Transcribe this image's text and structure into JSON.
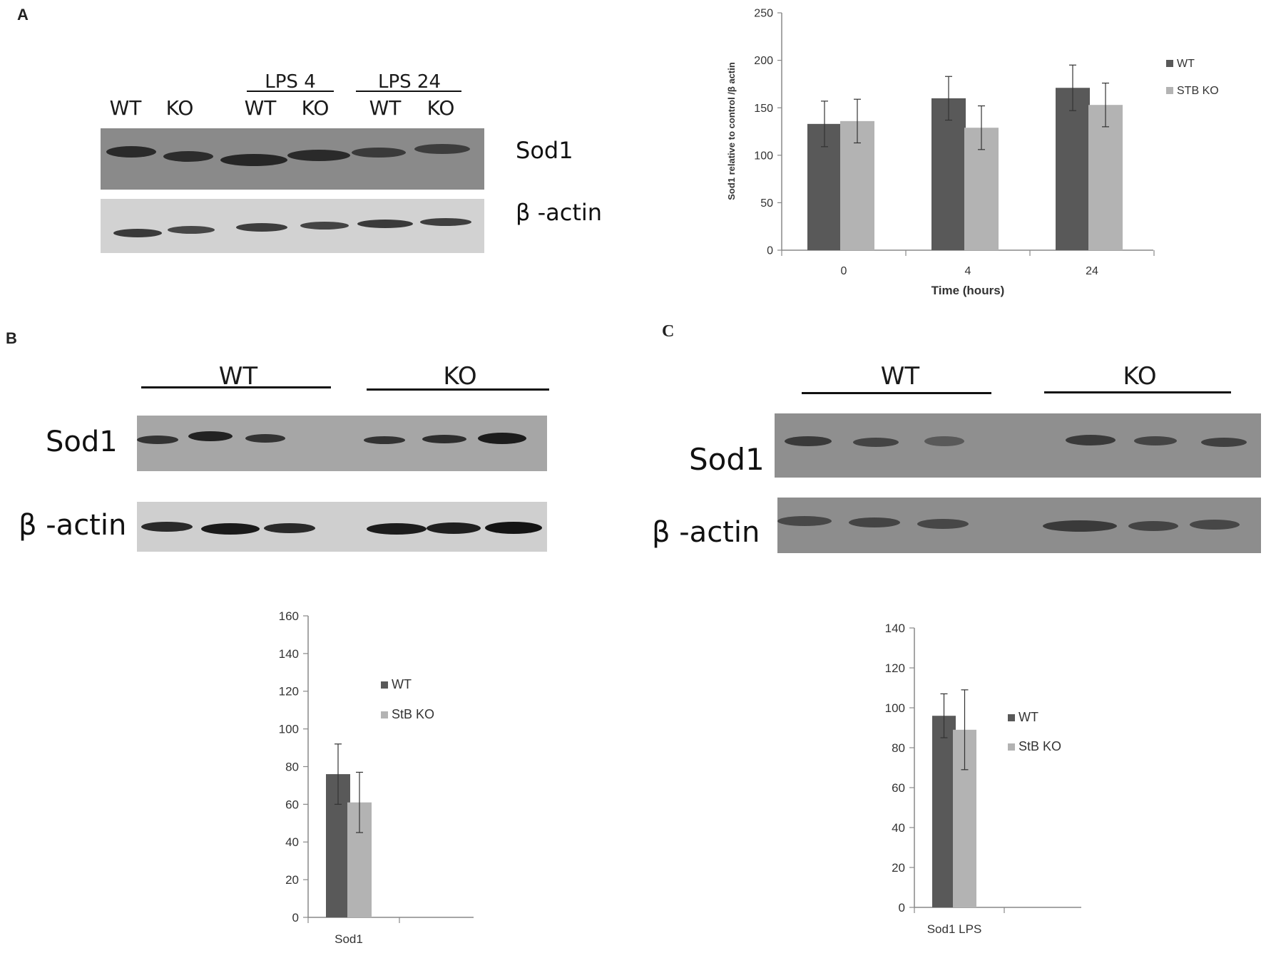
{
  "panels": {
    "A": {
      "letter": "A",
      "blot": {
        "lanes": [
          "WT",
          "KO",
          "WT",
          "KO",
          "WT",
          "KO"
        ],
        "groups": [
          "LPS 4",
          "LPS 24"
        ],
        "rows": [
          "Sod1",
          "β -actin"
        ]
      }
    },
    "B": {
      "letter": "B",
      "blot": {
        "groups": [
          "WT",
          "KO"
        ],
        "rows": [
          "Sod1",
          "β -actin"
        ]
      }
    },
    "C": {
      "letter": "C",
      "blot": {
        "groups": [
          "WT",
          "KO"
        ],
        "rows": [
          "Sod1",
          "β -actin"
        ]
      }
    }
  },
  "colors": {
    "wt": "#595959",
    "ko": "#b3b3b3",
    "axis": "#888888"
  },
  "chart_data": [
    {
      "id": "A",
      "type": "bar",
      "categories": [
        "0",
        "4",
        "24"
      ],
      "series": [
        {
          "name": "WT",
          "values": [
            133,
            160,
            171
          ],
          "errors": [
            24,
            23,
            24
          ]
        },
        {
          "name": "STB KO",
          "values": [
            136,
            129,
            153
          ],
          "errors": [
            23,
            23,
            23
          ]
        }
      ],
      "xlabel": "Time (hours)",
      "ylabel": "Sod1 relative to control /β actin",
      "ylim": [
        0,
        250
      ],
      "yticks": [
        0,
        50,
        100,
        150,
        200,
        250
      ],
      "grid": false,
      "legend": "right"
    },
    {
      "id": "B",
      "type": "bar",
      "categories": [
        "Sod1"
      ],
      "series": [
        {
          "name": "WT",
          "values": [
            76
          ],
          "errors": [
            16
          ]
        },
        {
          "name": "StB KO",
          "values": [
            61
          ],
          "errors": [
            16
          ]
        }
      ],
      "xlabel": "",
      "ylabel": "",
      "ylim": [
        0,
        160
      ],
      "yticks": [
        0,
        20,
        40,
        60,
        80,
        100,
        120,
        140,
        160
      ],
      "grid": false,
      "legend": "right"
    },
    {
      "id": "C",
      "type": "bar",
      "categories": [
        "Sod1 LPS"
      ],
      "series": [
        {
          "name": "WT",
          "values": [
            96
          ],
          "errors": [
            11
          ]
        },
        {
          "name": "StB KO",
          "values": [
            89
          ],
          "errors": [
            20
          ]
        }
      ],
      "xlabel": "",
      "ylabel": "",
      "ylim": [
        0,
        140
      ],
      "yticks": [
        0,
        20,
        40,
        60,
        80,
        100,
        120,
        140
      ],
      "grid": false,
      "legend": "right"
    }
  ]
}
